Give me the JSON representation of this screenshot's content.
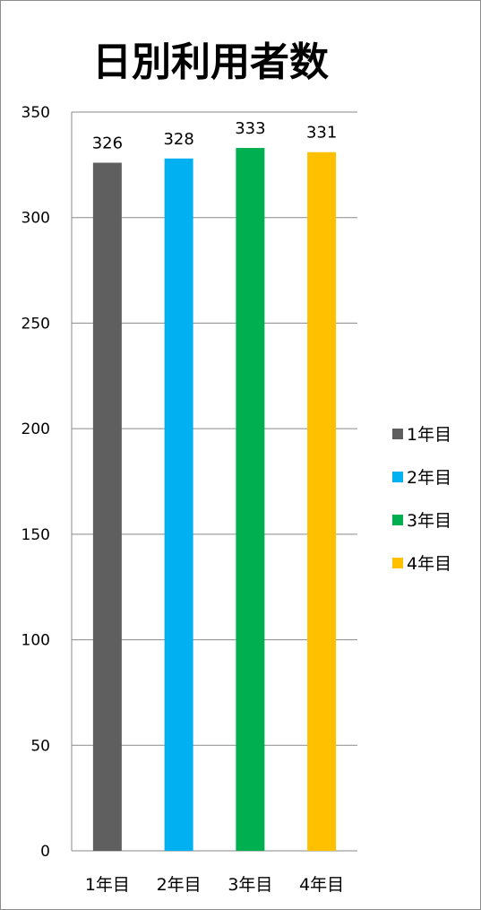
{
  "chart_data": {
    "type": "bar",
    "title": "日別利用者数",
    "categories": [
      "1年目",
      "2年目",
      "3年目",
      "4年目"
    ],
    "values": [
      326,
      328,
      333,
      331
    ],
    "colors": [
      "#5f5f5f",
      "#00b0f0",
      "#00b050",
      "#ffc000"
    ],
    "ylim": [
      0,
      350
    ],
    "yticks": [
      0,
      50,
      100,
      150,
      200,
      250,
      300,
      350
    ],
    "grid": true,
    "legend": {
      "position": "right",
      "entries": [
        "1年目",
        "2年目",
        "3年目",
        "4年目"
      ]
    },
    "data_labels": true
  }
}
